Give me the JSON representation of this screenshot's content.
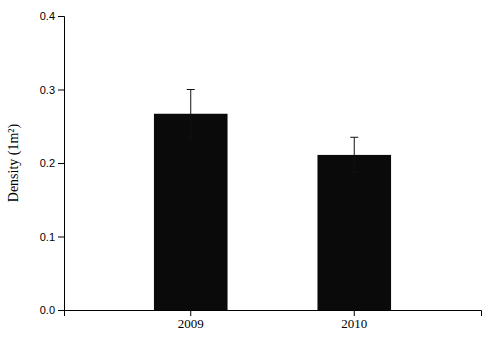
{
  "chart_data": {
    "type": "bar",
    "categories": [
      "2009",
      "2010"
    ],
    "values": [
      0.267,
      0.211
    ],
    "errors": [
      0.033,
      0.024
    ],
    "color": "#0a0a0a",
    "ylabel": "Density (1m²)",
    "ylim": [
      0,
      0.4
    ],
    "yticks": [
      {
        "value": 0,
        "label": "0.0"
      },
      0.1,
      0.2,
      0.3,
      0.4
    ],
    "grid": false
  }
}
